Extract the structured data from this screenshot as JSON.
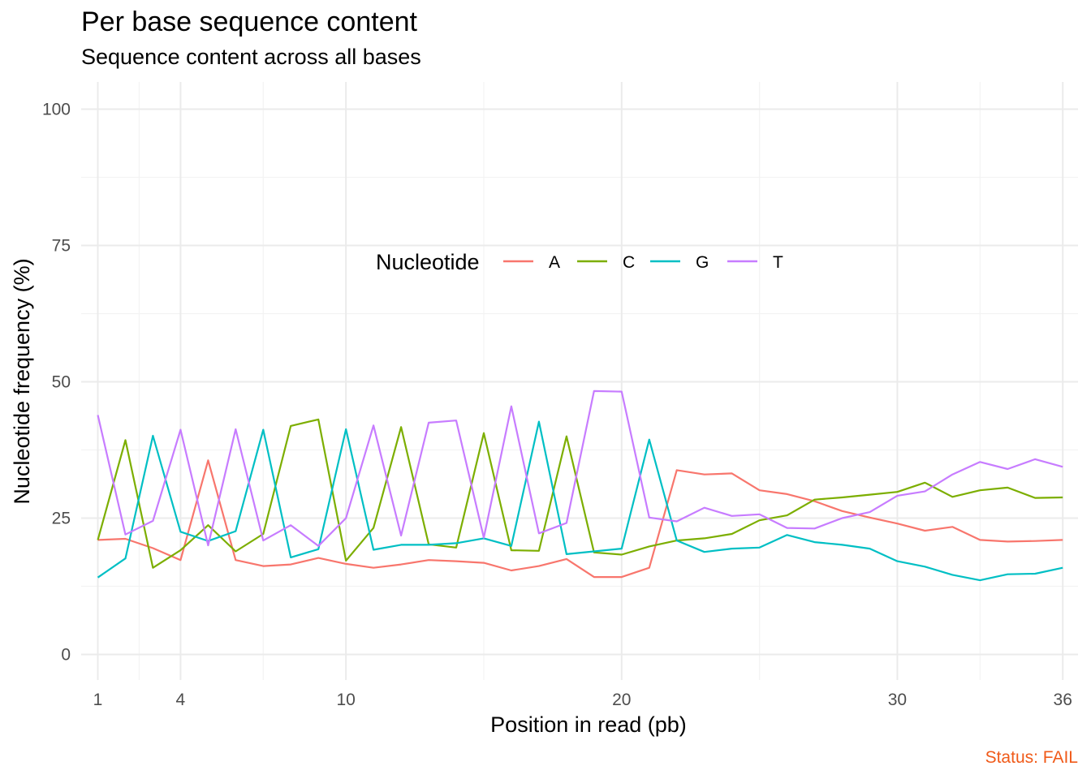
{
  "chart_data": {
    "type": "line",
    "title": "Per base sequence content",
    "subtitle": "Sequence content across all bases",
    "xlabel": "Position in read (pb)",
    "ylabel": "Nucleotide frequency (%)",
    "xlim": [
      1,
      36
    ],
    "ylim": [
      0,
      100
    ],
    "x_ticks": [
      1,
      4,
      10,
      20,
      30,
      36
    ],
    "y_ticks": [
      0,
      25,
      50,
      75,
      100
    ],
    "grid": true,
    "legend": {
      "title": "Nucleotide",
      "position": "top-center"
    },
    "x": [
      1,
      2,
      3,
      4,
      5,
      6,
      7,
      8,
      9,
      10,
      11,
      12,
      13,
      14,
      15,
      16,
      17,
      18,
      19,
      20,
      21,
      22,
      23,
      24,
      25,
      26,
      27,
      28,
      29,
      30,
      31,
      32,
      33,
      34,
      35,
      36
    ],
    "series": [
      {
        "name": "A",
        "color": "#F8766D",
        "values": [
          21.0,
          21.2,
          19.5,
          17.3,
          35.6,
          17.3,
          16.2,
          16.5,
          17.7,
          16.6,
          15.9,
          16.5,
          17.3,
          17.1,
          16.8,
          15.4,
          16.2,
          17.5,
          14.2,
          14.2,
          15.9,
          33.8,
          33.0,
          33.2,
          30.1,
          29.4,
          28.1,
          26.3,
          25.1,
          24.0,
          22.7,
          23.4,
          21.0,
          20.7,
          20.8,
          21.0
        ]
      },
      {
        "name": "C",
        "color": "#7CAE00",
        "values": [
          21.0,
          39.3,
          15.9,
          19.1,
          23.7,
          18.9,
          22.1,
          41.9,
          43.1,
          17.2,
          23.2,
          41.7,
          20.2,
          19.6,
          40.6,
          19.1,
          19.0,
          40.0,
          18.7,
          18.3,
          19.8,
          20.9,
          21.3,
          22.1,
          24.6,
          25.5,
          28.4,
          28.8,
          29.3,
          29.8,
          31.5,
          28.9,
          30.1,
          30.6,
          28.7,
          28.8
        ]
      },
      {
        "name": "G",
        "color": "#00BFC4",
        "values": [
          14.1,
          17.6,
          40.1,
          22.5,
          20.8,
          22.6,
          41.2,
          17.8,
          19.3,
          41.3,
          19.2,
          20.1,
          20.1,
          20.4,
          21.3,
          19.9,
          42.7,
          18.4,
          18.9,
          19.4,
          39.4,
          20.9,
          18.8,
          19.4,
          19.6,
          21.9,
          20.6,
          20.1,
          19.4,
          17.1,
          16.1,
          14.6,
          13.6,
          14.7,
          14.8,
          15.9
        ]
      },
      {
        "name": "T",
        "color": "#C77CFF",
        "values": [
          43.9,
          22.0,
          24.5,
          41.2,
          20.0,
          41.3,
          20.9,
          23.7,
          19.9,
          25.0,
          42.0,
          21.8,
          42.5,
          42.9,
          21.4,
          45.5,
          22.2,
          24.1,
          48.3,
          48.2,
          25.1,
          24.4,
          26.9,
          25.4,
          25.7,
          23.2,
          23.1,
          25.0,
          26.1,
          29.1,
          29.9,
          33.0,
          35.3,
          34.0,
          35.8,
          34.4
        ]
      }
    ],
    "caption": "Status: FAIL",
    "caption_color": "#F05A19"
  }
}
